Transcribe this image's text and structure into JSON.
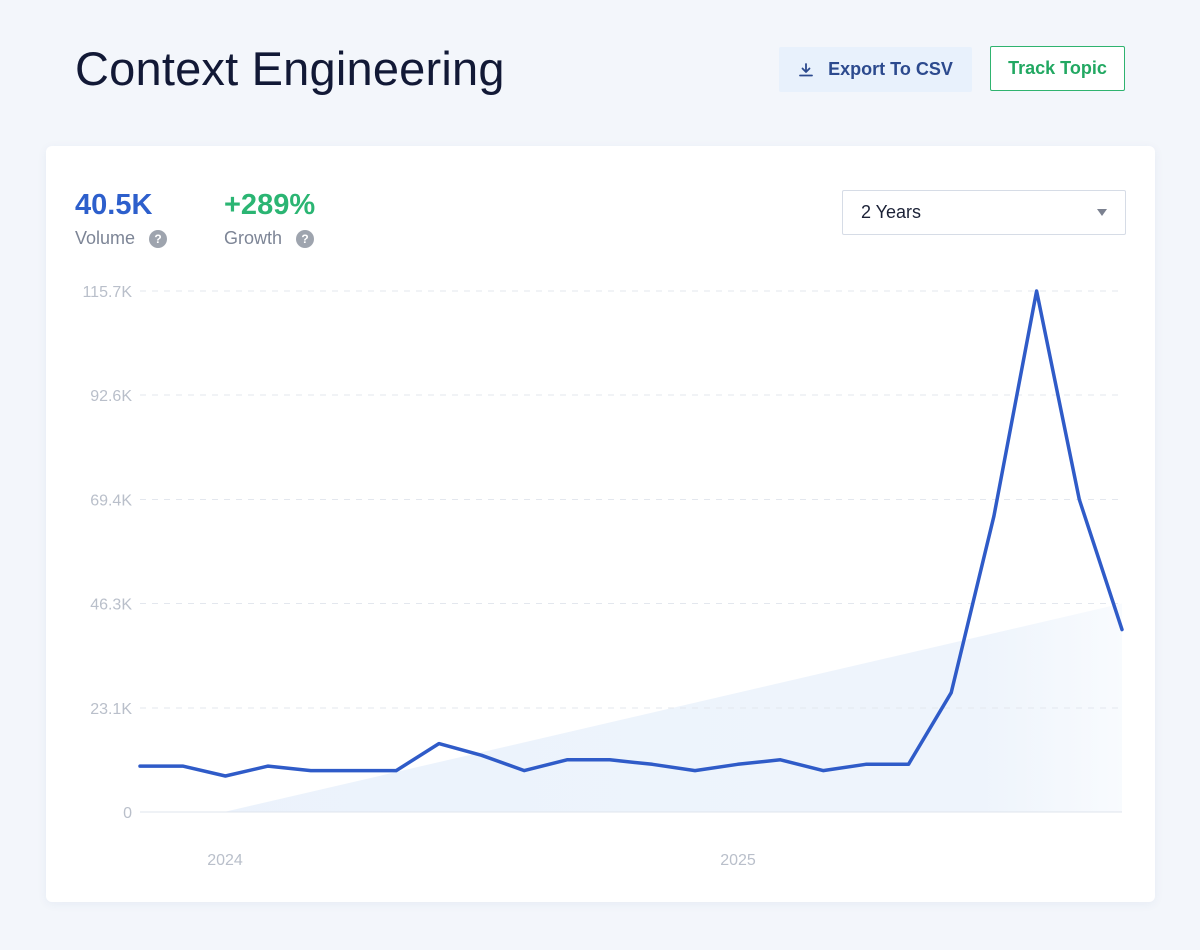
{
  "header": {
    "title": "Context Engineering",
    "export_label": "Export To CSV",
    "track_label": "Track Topic"
  },
  "metrics": {
    "volume": {
      "value": "40.5K",
      "label": "Volume"
    },
    "growth": {
      "value": "+289%",
      "label": "Growth"
    }
  },
  "range_select": {
    "value": "2 Years"
  },
  "icons": {
    "export": "download-icon",
    "help": "question-mark-icon",
    "dropdown": "chevron-down-icon"
  },
  "colors": {
    "line": "#2f5bc8",
    "growth": "#2bb573",
    "volume": "#2d5fcc",
    "trend_fill": "#e9f1fb"
  },
  "chart_data": {
    "type": "line",
    "ylim": [
      0,
      115700
    ],
    "y_ticks": [
      0,
      23100,
      46300,
      69400,
      92600,
      115700
    ],
    "y_tick_labels": [
      "0",
      "23.1K",
      "46.3K",
      "69.4K",
      "92.6K",
      "115.7K"
    ],
    "x_tick_labels": [
      "2024",
      "2025"
    ],
    "grid": true,
    "series": [
      {
        "values": [
          10200,
          10200,
          8000,
          10200,
          9200,
          9200,
          9200,
          15200,
          12600,
          9200,
          11600,
          11600,
          10600,
          9200,
          10600,
          11600,
          9200,
          10600,
          10600,
          26500,
          65700,
          115700,
          69400,
          40500
        ]
      }
    ],
    "trend": {
      "start": 0,
      "end": 46300
    }
  }
}
